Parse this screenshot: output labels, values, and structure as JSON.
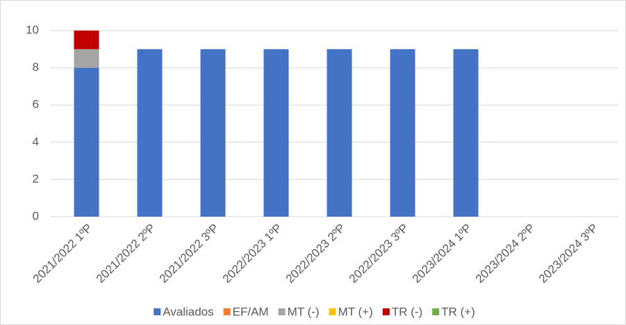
{
  "chart_data": {
    "type": "bar",
    "stacked": true,
    "categories": [
      "2021/2022 1ºP",
      "2021/2022 2ºP",
      "2021/2022 3ºP",
      "2022/2023 1ºP",
      "2022/2023 2ºP",
      "2022/2023 3ºP",
      "2023/2024 1ºP",
      "2023/2024 2ºP",
      "2023/2024 3ºP"
    ],
    "series": [
      {
        "name": "Avaliados",
        "color": "#4472c4",
        "values": [
          8,
          9,
          9,
          9,
          9,
          9,
          9,
          0,
          0
        ]
      },
      {
        "name": "EF/AM",
        "color": "#ed7d31",
        "values": [
          0,
          0,
          0,
          0,
          0,
          0,
          0,
          0,
          0
        ]
      },
      {
        "name": "MT (-)",
        "color": "#a5a5a5",
        "values": [
          1,
          0,
          0,
          0,
          0,
          0,
          0,
          0,
          0
        ]
      },
      {
        "name": "MT (+)",
        "color": "#ffc000",
        "values": [
          0,
          0,
          0,
          0,
          0,
          0,
          0,
          0,
          0
        ]
      },
      {
        "name": "TR (-)",
        "color": "#c00000",
        "values": [
          1,
          0,
          0,
          0,
          0,
          0,
          0,
          0,
          0
        ]
      },
      {
        "name": "TR (+)",
        "color": "#70ad47",
        "values": [
          0,
          0,
          0,
          0,
          0,
          0,
          0,
          0,
          0
        ]
      }
    ],
    "ylim": [
      0,
      10
    ],
    "yticks": [
      0,
      2,
      4,
      6,
      8,
      10
    ],
    "grid": true,
    "legend": "bottom"
  }
}
